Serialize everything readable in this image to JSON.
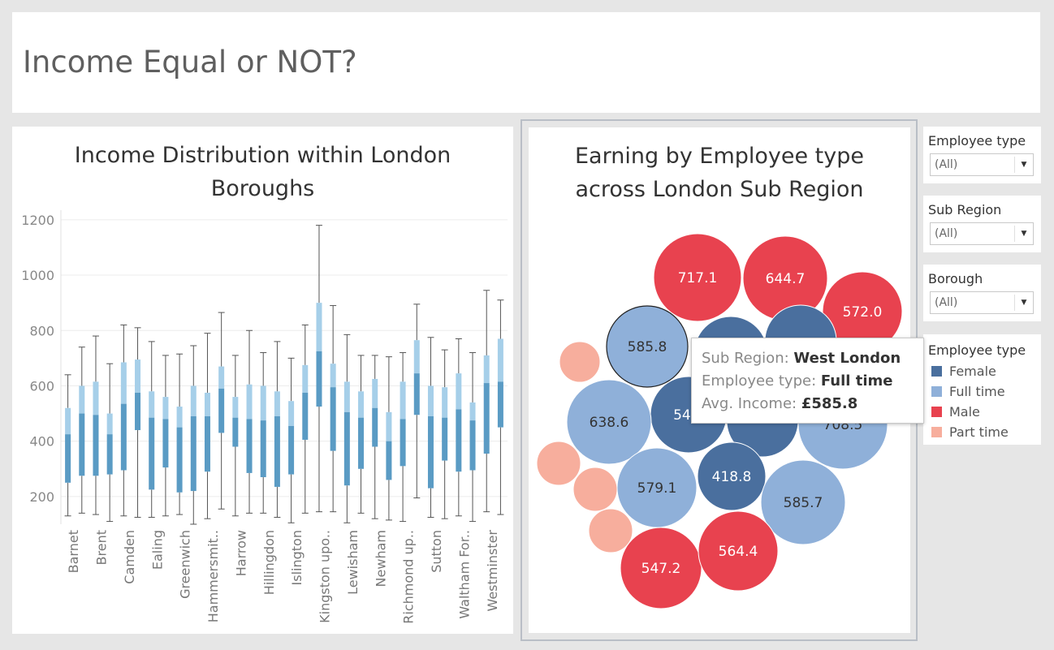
{
  "dashboard": {
    "title": "Income Equal or NOT?"
  },
  "box_chart": {
    "title_line1": "Income Distribution within London",
    "title_line2": "Boroughs"
  },
  "bubble_chart": {
    "title_line1": "Earning by Employee type",
    "title_line2": "across London Sub Region"
  },
  "filters": [
    {
      "label": "Employee type",
      "value": "(All)"
    },
    {
      "label": "Sub Region",
      "value": "(All)"
    },
    {
      "label": "Borough",
      "value": "(All)"
    }
  ],
  "legend": {
    "title": "Employee type",
    "items": [
      {
        "label": "Female",
        "color": "#4a6f9e"
      },
      {
        "label": "Full time",
        "color": "#8fb0d9"
      },
      {
        "label": "Male",
        "color": "#e8424f"
      },
      {
        "label": "Part time",
        "color": "#f7ae9d"
      }
    ]
  },
  "tooltip": {
    "sub_region_label": "Sub Region:",
    "sub_region_value": "West London",
    "employee_type_label": "Employee type:",
    "employee_type_value": "Full time",
    "avg_income_label": "Avg. Income:",
    "avg_income_value": "£585.8"
  },
  "chart_data": [
    {
      "type": "boxplot",
      "title": "Income Distribution within London Boroughs",
      "ylim": [
        100,
        1220
      ],
      "yticks": [
        200,
        400,
        600,
        800,
        1000,
        1200
      ],
      "grid": true,
      "x_tick_labels": [
        "Barnet",
        "Brent",
        "Camden",
        "Ealing",
        "Greenwich",
        "Hammersmit..",
        "Harrow",
        "Hillingdon",
        "Islington",
        "Kingston upo..",
        "Lewisham",
        "Newham",
        "Richmond up..",
        "Sutton",
        "Waltham For..",
        "Westminster"
      ],
      "boxes": [
        {
          "min": 130,
          "q1": 250,
          "median": 425,
          "q3": 520,
          "max": 640
        },
        {
          "min": 140,
          "q1": 275,
          "median": 500,
          "q3": 600,
          "max": 740
        },
        {
          "min": 135,
          "q1": 275,
          "median": 495,
          "q3": 615,
          "max": 780
        },
        {
          "min": 110,
          "q1": 280,
          "median": 425,
          "q3": 500,
          "max": 680
        },
        {
          "min": 130,
          "q1": 295,
          "median": 535,
          "q3": 685,
          "max": 820
        },
        {
          "min": 125,
          "q1": 440,
          "median": 575,
          "q3": 695,
          "max": 810
        },
        {
          "min": 125,
          "q1": 225,
          "median": 485,
          "q3": 580,
          "max": 760
        },
        {
          "min": 130,
          "q1": 305,
          "median": 480,
          "q3": 560,
          "max": 710
        },
        {
          "min": 135,
          "q1": 215,
          "median": 450,
          "q3": 525,
          "max": 715
        },
        {
          "min": 100,
          "q1": 220,
          "median": 490,
          "q3": 600,
          "max": 745
        },
        {
          "min": 120,
          "q1": 290,
          "median": 490,
          "q3": 575,
          "max": 790
        },
        {
          "min": 155,
          "q1": 430,
          "median": 590,
          "q3": 670,
          "max": 865
        },
        {
          "min": 130,
          "q1": 380,
          "median": 485,
          "q3": 560,
          "max": 710
        },
        {
          "min": 140,
          "q1": 285,
          "median": 480,
          "q3": 605,
          "max": 800
        },
        {
          "min": 140,
          "q1": 270,
          "median": 475,
          "q3": 600,
          "max": 720
        },
        {
          "min": 125,
          "q1": 235,
          "median": 490,
          "q3": 580,
          "max": 760
        },
        {
          "min": 105,
          "q1": 280,
          "median": 455,
          "q3": 545,
          "max": 700
        },
        {
          "min": 140,
          "q1": 405,
          "median": 575,
          "q3": 675,
          "max": 820
        },
        {
          "min": 145,
          "q1": 525,
          "median": 725,
          "q3": 900,
          "max": 1180
        },
        {
          "min": 145,
          "q1": 365,
          "median": 595,
          "q3": 680,
          "max": 890
        },
        {
          "min": 105,
          "q1": 240,
          "median": 505,
          "q3": 615,
          "max": 785
        },
        {
          "min": 140,
          "q1": 300,
          "median": 485,
          "q3": 580,
          "max": 710
        },
        {
          "min": 120,
          "q1": 380,
          "median": 520,
          "q3": 625,
          "max": 710
        },
        {
          "min": 115,
          "q1": 260,
          "median": 400,
          "q3": 505,
          "max": 705
        },
        {
          "min": 110,
          "q1": 310,
          "median": 480,
          "q3": 615,
          "max": 720
        },
        {
          "min": 195,
          "q1": 495,
          "median": 645,
          "q3": 765,
          "max": 895
        },
        {
          "min": 125,
          "q1": 230,
          "median": 490,
          "q3": 600,
          "max": 775
        },
        {
          "min": 120,
          "q1": 330,
          "median": 485,
          "q3": 595,
          "max": 730
        },
        {
          "min": 130,
          "q1": 290,
          "median": 515,
          "q3": 645,
          "max": 770
        },
        {
          "min": 110,
          "q1": 295,
          "median": 475,
          "q3": 540,
          "max": 720
        },
        {
          "min": 145,
          "q1": 355,
          "median": 610,
          "q3": 710,
          "max": 945
        },
        {
          "min": 135,
          "q1": 450,
          "median": 615,
          "q3": 770,
          "max": 910
        }
      ]
    },
    {
      "type": "packed_bubble",
      "title": "Earning by Employee type across London Sub Region",
      "bubbles": [
        {
          "type": "Male",
          "value": 717.1,
          "label": "717.1"
        },
        {
          "type": "Male",
          "value": 644.7,
          "label": "644.7"
        },
        {
          "type": "Male",
          "value": 572.0,
          "label": "572.0"
        },
        {
          "type": "Full time",
          "value": 585.8,
          "label": "585.8",
          "selected": true
        },
        {
          "type": "Female",
          "value": 547,
          "label": "547."
        },
        {
          "type": "Female",
          "value": 540,
          "label": ""
        },
        {
          "type": "Female",
          "value": 520,
          "label": ""
        },
        {
          "type": "Female",
          "value": 505,
          "label": ""
        },
        {
          "type": "Full time",
          "value": 708.5,
          "label": "708.5"
        },
        {
          "type": "Full time",
          "value": 638.6,
          "label": "638.6"
        },
        {
          "type": "Full time",
          "value": 579.1,
          "label": "579.1"
        },
        {
          "type": "Female",
          "value": 418.8,
          "label": "418.8"
        },
        {
          "type": "Full time",
          "value": 585.7,
          "label": "585.7"
        },
        {
          "type": "Male",
          "value": 547.2,
          "label": "547.2"
        },
        {
          "type": "Male",
          "value": 564.4,
          "label": "564.4"
        },
        {
          "type": "Part time",
          "value": 210,
          "label": ""
        },
        {
          "type": "Part time",
          "value": 210,
          "label": ""
        },
        {
          "type": "Part time",
          "value": 200,
          "label": ""
        },
        {
          "type": "Part time",
          "value": 200,
          "label": ""
        }
      ]
    }
  ]
}
